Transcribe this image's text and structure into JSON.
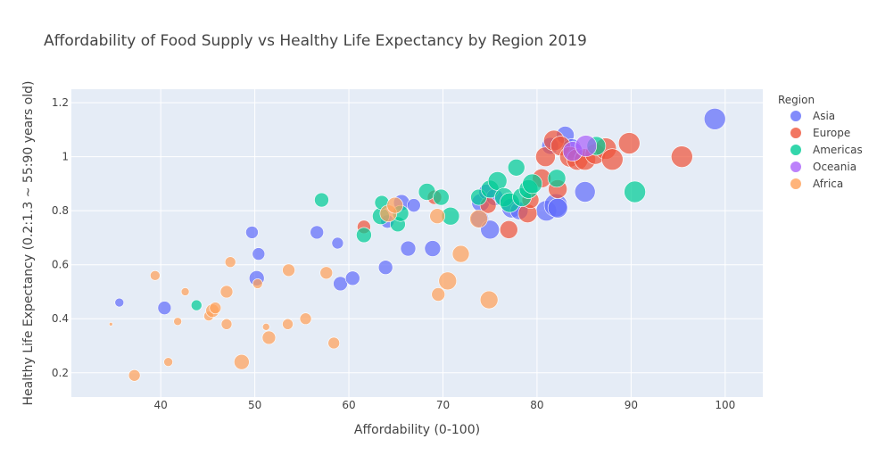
{
  "chart_data": {
    "type": "scatter",
    "title": "Affordability of Food Supply vs Healthy Life Expectancy by Region 2019",
    "xlabel": "Affordability (0-100)",
    "ylabel": "Healthy Life Expectancy (0.2:1.3 ~ 55:90 years old)",
    "xlim": [
      30.5,
      104
    ],
    "ylim": [
      0.11,
      1.25
    ],
    "xticks": [
      40,
      50,
      60,
      70,
      80,
      90,
      100
    ],
    "yticks": [
      0.2,
      0.4,
      0.6,
      0.8,
      1,
      1.2
    ],
    "xtick_labels": [
      "40",
      "50",
      "60",
      "70",
      "80",
      "90",
      "100"
    ],
    "ytick_labels": [
      "0.2",
      "0.4",
      "0.6",
      "0.8",
      "1",
      "1.2"
    ],
    "grid": true,
    "legend": {
      "title": "Region",
      "position": "right"
    },
    "series": [
      {
        "name": "Asia",
        "color": "#636efa",
        "points": [
          [
            35.6,
            0.46,
            10
          ],
          [
            40.4,
            0.44,
            15
          ],
          [
            49.7,
            0.72,
            14
          ],
          [
            50.2,
            0.55,
            17
          ],
          [
            50.4,
            0.64,
            14
          ],
          [
            56.6,
            0.72,
            15
          ],
          [
            58.8,
            0.68,
            13
          ],
          [
            59.1,
            0.53,
            16
          ],
          [
            60.4,
            0.55,
            16
          ],
          [
            63.9,
            0.59,
            16
          ],
          [
            64.1,
            0.76,
            15
          ],
          [
            65.6,
            0.83,
            18
          ],
          [
            66.3,
            0.66,
            17
          ],
          [
            66.9,
            0.82,
            15
          ],
          [
            68.9,
            0.66,
            18
          ],
          [
            73.9,
            0.77,
            20
          ],
          [
            74.0,
            0.83,
            20
          ],
          [
            74.6,
            0.87,
            17
          ],
          [
            75.0,
            0.73,
            21
          ],
          [
            75.5,
            0.85,
            19
          ],
          [
            77.3,
            0.81,
            22
          ],
          [
            78.1,
            0.8,
            20
          ],
          [
            81.0,
            0.8,
            23
          ],
          [
            81.4,
            1.04,
            19
          ],
          [
            82.0,
            0.82,
            26
          ],
          [
            82.2,
            0.81,
            22
          ],
          [
            83.0,
            1.08,
            20
          ],
          [
            85.1,
            0.87,
            23
          ],
          [
            83.7,
            1.03,
            22
          ],
          [
            98.9,
            1.14,
            24
          ]
        ]
      },
      {
        "name": "Europe",
        "color": "#ef553b",
        "points": [
          [
            61.6,
            0.74,
            15
          ],
          [
            69.1,
            0.85,
            16
          ],
          [
            74.8,
            0.82,
            18
          ],
          [
            77.0,
            0.73,
            20
          ],
          [
            79.0,
            0.79,
            21
          ],
          [
            79.3,
            0.84,
            19
          ],
          [
            80.5,
            0.92,
            21
          ],
          [
            80.9,
            1.0,
            22
          ],
          [
            81.8,
            1.06,
            23
          ],
          [
            82.2,
            0.88,
            21
          ],
          [
            82.5,
            1.04,
            22
          ],
          [
            83.5,
            1.0,
            23
          ],
          [
            84.3,
            0.99,
            24
          ],
          [
            85.1,
            0.99,
            24
          ],
          [
            86.2,
            1.01,
            23
          ],
          [
            87.3,
            1.03,
            24
          ],
          [
            88.0,
            0.99,
            24
          ],
          [
            89.8,
            1.05,
            24
          ],
          [
            95.4,
            1.0,
            24
          ]
        ]
      },
      {
        "name": "Americas",
        "color": "#00cc96",
        "points": [
          [
            43.8,
            0.45,
            12
          ],
          [
            57.1,
            0.84,
            16
          ],
          [
            61.6,
            0.71,
            17
          ],
          [
            63.4,
            0.78,
            19
          ],
          [
            63.5,
            0.83,
            16
          ],
          [
            65.2,
            0.75,
            17
          ],
          [
            65.5,
            0.79,
            18
          ],
          [
            68.3,
            0.87,
            19
          ],
          [
            69.8,
            0.85,
            18
          ],
          [
            70.8,
            0.78,
            20
          ],
          [
            73.8,
            0.85,
            18
          ],
          [
            75.0,
            0.88,
            20
          ],
          [
            75.8,
            0.91,
            21
          ],
          [
            76.5,
            0.85,
            21
          ],
          [
            77.1,
            0.83,
            22
          ],
          [
            77.8,
            0.96,
            19
          ],
          [
            78.4,
            0.85,
            21
          ],
          [
            79.1,
            0.88,
            21
          ],
          [
            79.5,
            0.9,
            22
          ],
          [
            82.1,
            0.92,
            20
          ],
          [
            86.3,
            1.04,
            21
          ],
          [
            90.4,
            0.87,
            24
          ]
        ]
      },
      {
        "name": "Oceania",
        "color": "#ab63fa",
        "points": [
          [
            83.8,
            1.02,
            22
          ],
          [
            85.2,
            1.04,
            24
          ]
        ]
      },
      {
        "name": "Africa",
        "color": "#ffa15a",
        "points": [
          [
            34.7,
            0.38,
            4
          ],
          [
            37.2,
            0.19,
            13
          ],
          [
            39.4,
            0.56,
            11
          ],
          [
            40.8,
            0.24,
            10
          ],
          [
            41.8,
            0.39,
            9
          ],
          [
            42.6,
            0.5,
            9
          ],
          [
            45.1,
            0.41,
            11
          ],
          [
            45.5,
            0.43,
            15
          ],
          [
            45.8,
            0.44,
            13
          ],
          [
            47.0,
            0.38,
            12
          ],
          [
            47.0,
            0.5,
            14
          ],
          [
            47.4,
            0.61,
            12
          ],
          [
            48.6,
            0.24,
            17
          ],
          [
            50.3,
            0.53,
            11
          ],
          [
            51.2,
            0.37,
            8
          ],
          [
            51.5,
            0.33,
            15
          ],
          [
            53.5,
            0.38,
            12
          ],
          [
            53.6,
            0.58,
            14
          ],
          [
            55.4,
            0.4,
            13
          ],
          [
            57.6,
            0.57,
            14
          ],
          [
            58.4,
            0.31,
            13
          ],
          [
            64.2,
            0.79,
            19
          ],
          [
            64.9,
            0.82,
            18
          ],
          [
            69.4,
            0.78,
            17
          ],
          [
            69.5,
            0.49,
            15
          ],
          [
            70.5,
            0.54,
            20
          ],
          [
            71.9,
            0.64,
            19
          ],
          [
            73.8,
            0.77,
            20
          ],
          [
            74.9,
            0.47,
            20
          ]
        ]
      }
    ]
  }
}
